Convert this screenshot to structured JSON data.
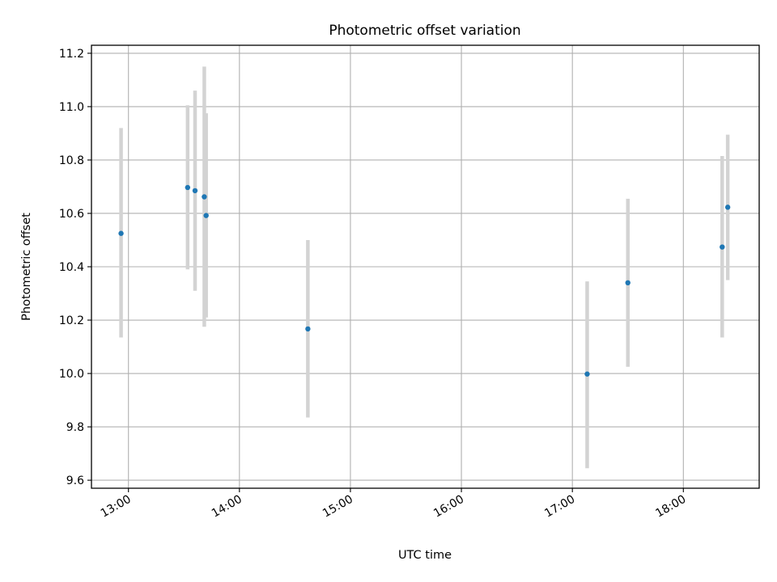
{
  "chart_data": {
    "type": "scatter",
    "title": "Photometric offset variation",
    "xlabel": "UTC time",
    "ylabel": "Photometric offset",
    "x_axis": {
      "type": "time",
      "range": [
        "12:40",
        "18:41"
      ],
      "ticks": [
        "13:00",
        "14:00",
        "15:00",
        "16:00",
        "17:00",
        "18:00"
      ]
    },
    "y_axis": {
      "range": [
        9.57,
        11.23
      ],
      "ticks": [
        "9.6",
        "9.8",
        "10.0",
        "10.2",
        "10.4",
        "10.6",
        "10.8",
        "11.0",
        "11.2"
      ]
    },
    "grid": true,
    "marker_color": "#1f77b4",
    "errorbar_color": "#d3d3d3",
    "series": [
      {
        "points": [
          {
            "x": "12:56",
            "y": 10.525,
            "low": 10.135,
            "high": 10.92
          },
          {
            "x": "13:32",
            "y": 10.697,
            "low": 10.39,
            "high": 11.005
          },
          {
            "x": "13:36",
            "y": 10.685,
            "low": 10.31,
            "high": 11.06
          },
          {
            "x": "13:41",
            "y": 10.662,
            "low": 10.175,
            "high": 11.15
          },
          {
            "x": "13:42",
            "y": 10.592,
            "low": 10.21,
            "high": 10.975
          },
          {
            "x": "14:37",
            "y": 10.167,
            "low": 9.835,
            "high": 10.5
          },
          {
            "x": "17:08",
            "y": 9.998,
            "low": 9.645,
            "high": 10.345
          },
          {
            "x": "17:30",
            "y": 10.34,
            "low": 10.025,
            "high": 10.655
          },
          {
            "x": "18:21",
            "y": 10.474,
            "low": 10.135,
            "high": 10.815
          },
          {
            "x": "18:24",
            "y": 10.623,
            "low": 10.35,
            "high": 10.895
          }
        ]
      }
    ]
  }
}
